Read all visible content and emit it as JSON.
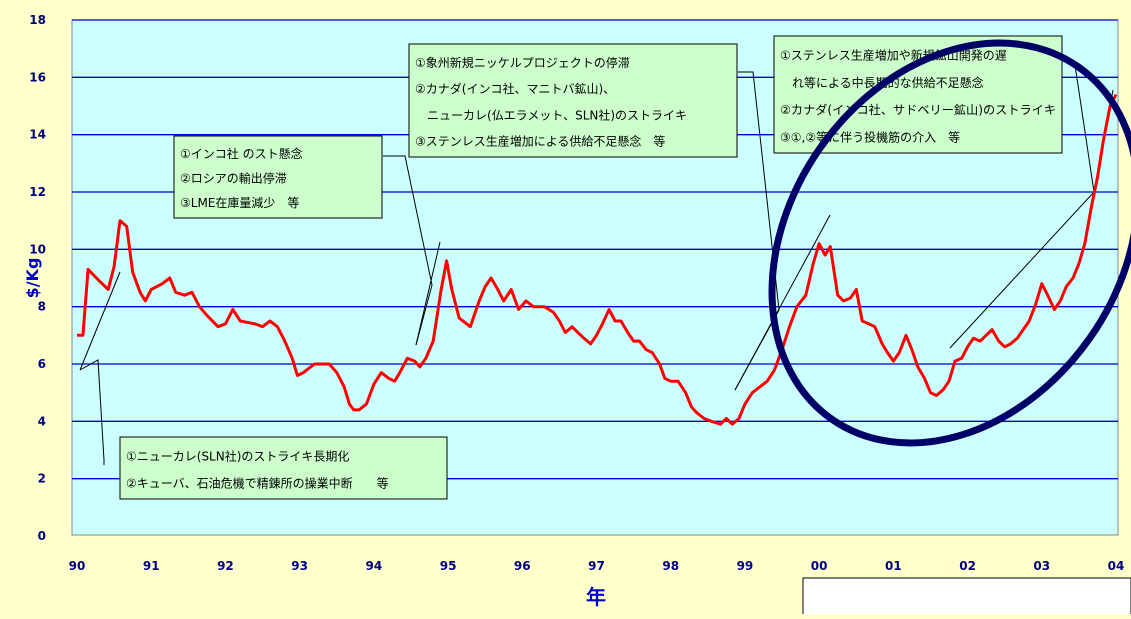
{
  "chart_data": {
    "type": "line",
    "title": "",
    "xlabel": "年",
    "ylabel": "$/Kg",
    "ylim": [
      0,
      18
    ],
    "xlim": [
      1990,
      2004
    ],
    "y_ticks": [
      0,
      2,
      4,
      6,
      8,
      10,
      12,
      14,
      16,
      18
    ],
    "x_tick_labels": [
      "90",
      "91",
      "92",
      "93",
      "94",
      "95",
      "96",
      "97",
      "98",
      "99",
      "00",
      "01",
      "02",
      "03",
      "04"
    ],
    "grid": true,
    "series": [
      {
        "color": "#ff0000",
        "points": [
          [
            1990.0,
            7.0
          ],
          [
            1990.08,
            7.0
          ],
          [
            1990.15,
            9.3
          ],
          [
            1990.3,
            8.9
          ],
          [
            1990.42,
            8.6
          ],
          [
            1990.5,
            9.4
          ],
          [
            1990.58,
            11.0
          ],
          [
            1990.67,
            10.8
          ],
          [
            1990.75,
            9.2
          ],
          [
            1990.85,
            8.5
          ],
          [
            1990.92,
            8.2
          ],
          [
            1991.0,
            8.6
          ],
          [
            1991.15,
            8.8
          ],
          [
            1991.25,
            9.0
          ],
          [
            1991.33,
            8.5
          ],
          [
            1991.45,
            8.4
          ],
          [
            1991.55,
            8.5
          ],
          [
            1991.65,
            8.0
          ],
          [
            1991.75,
            7.7
          ],
          [
            1991.9,
            7.3
          ],
          [
            1992.0,
            7.4
          ],
          [
            1992.1,
            7.9
          ],
          [
            1992.2,
            7.5
          ],
          [
            1992.4,
            7.4
          ],
          [
            1992.5,
            7.3
          ],
          [
            1992.6,
            7.5
          ],
          [
            1992.7,
            7.3
          ],
          [
            1992.8,
            6.8
          ],
          [
            1992.9,
            6.2
          ],
          [
            1992.97,
            5.6
          ],
          [
            1993.05,
            5.7
          ],
          [
            1993.2,
            6.0
          ],
          [
            1993.4,
            6.0
          ],
          [
            1993.5,
            5.7
          ],
          [
            1993.6,
            5.2
          ],
          [
            1993.67,
            4.6
          ],
          [
            1993.73,
            4.4
          ],
          [
            1993.8,
            4.4
          ],
          [
            1993.9,
            4.6
          ],
          [
            1994.0,
            5.3
          ],
          [
            1994.1,
            5.7
          ],
          [
            1994.2,
            5.5
          ],
          [
            1994.28,
            5.4
          ],
          [
            1994.35,
            5.7
          ],
          [
            1994.45,
            6.2
          ],
          [
            1994.55,
            6.1
          ],
          [
            1994.62,
            5.9
          ],
          [
            1994.7,
            6.2
          ],
          [
            1994.8,
            6.8
          ],
          [
            1994.9,
            8.5
          ],
          [
            1994.98,
            9.6
          ],
          [
            1995.05,
            8.6
          ],
          [
            1995.15,
            7.6
          ],
          [
            1995.3,
            7.3
          ],
          [
            1995.42,
            8.2
          ],
          [
            1995.5,
            8.7
          ],
          [
            1995.58,
            9.0
          ],
          [
            1995.67,
            8.6
          ],
          [
            1995.75,
            8.2
          ],
          [
            1995.85,
            8.6
          ],
          [
            1995.95,
            7.9
          ],
          [
            1996.05,
            8.2
          ],
          [
            1996.15,
            8.0
          ],
          [
            1996.3,
            8.0
          ],
          [
            1996.42,
            7.8
          ],
          [
            1996.5,
            7.5
          ],
          [
            1996.58,
            7.1
          ],
          [
            1996.67,
            7.3
          ],
          [
            1996.75,
            7.1
          ],
          [
            1996.83,
            6.9
          ],
          [
            1996.92,
            6.7
          ],
          [
            1997.0,
            7.0
          ],
          [
            1997.08,
            7.4
          ],
          [
            1997.17,
            7.9
          ],
          [
            1997.25,
            7.5
          ],
          [
            1997.33,
            7.5
          ],
          [
            1997.42,
            7.1
          ],
          [
            1997.5,
            6.8
          ],
          [
            1997.58,
            6.8
          ],
          [
            1997.67,
            6.5
          ],
          [
            1997.75,
            6.4
          ],
          [
            1997.85,
            6.0
          ],
          [
            1997.92,
            5.5
          ],
          [
            1998.0,
            5.4
          ],
          [
            1998.1,
            5.4
          ],
          [
            1998.2,
            5.0
          ],
          [
            1998.28,
            4.5
          ],
          [
            1998.35,
            4.3
          ],
          [
            1998.45,
            4.1
          ],
          [
            1998.55,
            4.0
          ],
          [
            1998.67,
            3.9
          ],
          [
            1998.75,
            4.1
          ],
          [
            1998.83,
            3.9
          ],
          [
            1998.92,
            4.1
          ],
          [
            1999.0,
            4.6
          ],
          [
            1999.1,
            5.0
          ],
          [
            1999.2,
            5.2
          ],
          [
            1999.3,
            5.4
          ],
          [
            1999.4,
            5.8
          ],
          [
            1999.5,
            6.5
          ],
          [
            1999.6,
            7.3
          ],
          [
            1999.7,
            8.0
          ],
          [
            1999.82,
            8.4
          ],
          [
            1999.92,
            9.5
          ],
          [
            2000.0,
            10.2
          ],
          [
            2000.08,
            9.8
          ],
          [
            2000.15,
            10.1
          ],
          [
            2000.25,
            8.4
          ],
          [
            2000.33,
            8.2
          ],
          [
            2000.42,
            8.3
          ],
          [
            2000.5,
            8.6
          ],
          [
            2000.58,
            7.5
          ],
          [
            2000.67,
            7.4
          ],
          [
            2000.75,
            7.3
          ],
          [
            2000.85,
            6.7
          ],
          [
            2000.92,
            6.4
          ],
          [
            2001.0,
            6.1
          ],
          [
            2001.08,
            6.4
          ],
          [
            2001.17,
            7.0
          ],
          [
            2001.25,
            6.5
          ],
          [
            2001.33,
            5.9
          ],
          [
            2001.42,
            5.5
          ],
          [
            2001.5,
            5.0
          ],
          [
            2001.58,
            4.9
          ],
          [
            2001.67,
            5.1
          ],
          [
            2001.75,
            5.4
          ],
          [
            2001.83,
            6.1
          ],
          [
            2001.92,
            6.2
          ],
          [
            2002.0,
            6.6
          ],
          [
            2002.08,
            6.9
          ],
          [
            2002.17,
            6.8
          ],
          [
            2002.25,
            7.0
          ],
          [
            2002.33,
            7.2
          ],
          [
            2002.42,
            6.8
          ],
          [
            2002.5,
            6.6
          ],
          [
            2002.58,
            6.7
          ],
          [
            2002.67,
            6.9
          ],
          [
            2002.75,
            7.2
          ],
          [
            2002.83,
            7.5
          ],
          [
            2002.92,
            8.1
          ],
          [
            2003.0,
            8.8
          ],
          [
            2003.08,
            8.4
          ],
          [
            2003.17,
            7.9
          ],
          [
            2003.25,
            8.2
          ],
          [
            2003.33,
            8.7
          ],
          [
            2003.42,
            9.0
          ],
          [
            2003.5,
            9.5
          ],
          [
            2003.58,
            10.2
          ],
          [
            2003.67,
            11.5
          ],
          [
            2003.75,
            12.5
          ],
          [
            2003.83,
            13.8
          ],
          [
            2003.92,
            15.0
          ],
          [
            2004.0,
            15.4
          ]
        ]
      }
    ],
    "annotations": [
      {
        "lines": [
          "①インコ社 のスト懸念",
          "②ロシアの輸出停滞",
          "③LME在庫量減少　等"
        ]
      },
      {
        "lines": [
          "①象州新規ニッケルプロジェクトの停滞",
          "②カナダ(インコ社、マニトバ鉱山)、",
          "　ニューカレ(仏エラメット、SLN社)のストライキ",
          "③ステンレス生産増加による供給不足懸念　等"
        ]
      },
      {
        "lines": [
          "①ステンレス生産増加や新規鉱山開発の遅",
          "　れ等による中長期的な供給不足懸念",
          "②カナダ(インコ社、サドベリー鉱山)のストライキ",
          "③①,②等に伴う投機筋の介入　等"
        ]
      },
      {
        "lines": [
          "①ニューカレ(SLN社)のストライキ長期化",
          "②キューバ、石油危機で精錬所の操業中断　　等"
        ]
      }
    ]
  },
  "colors": {
    "page_bg": "#ffffcc",
    "plot_bg": "#ccffff",
    "grid": "#0000cc",
    "line": "#ff0000",
    "tick_text": "#000080",
    "annotation_bg": "#ccffcc",
    "highlight_circle": "#000066"
  }
}
